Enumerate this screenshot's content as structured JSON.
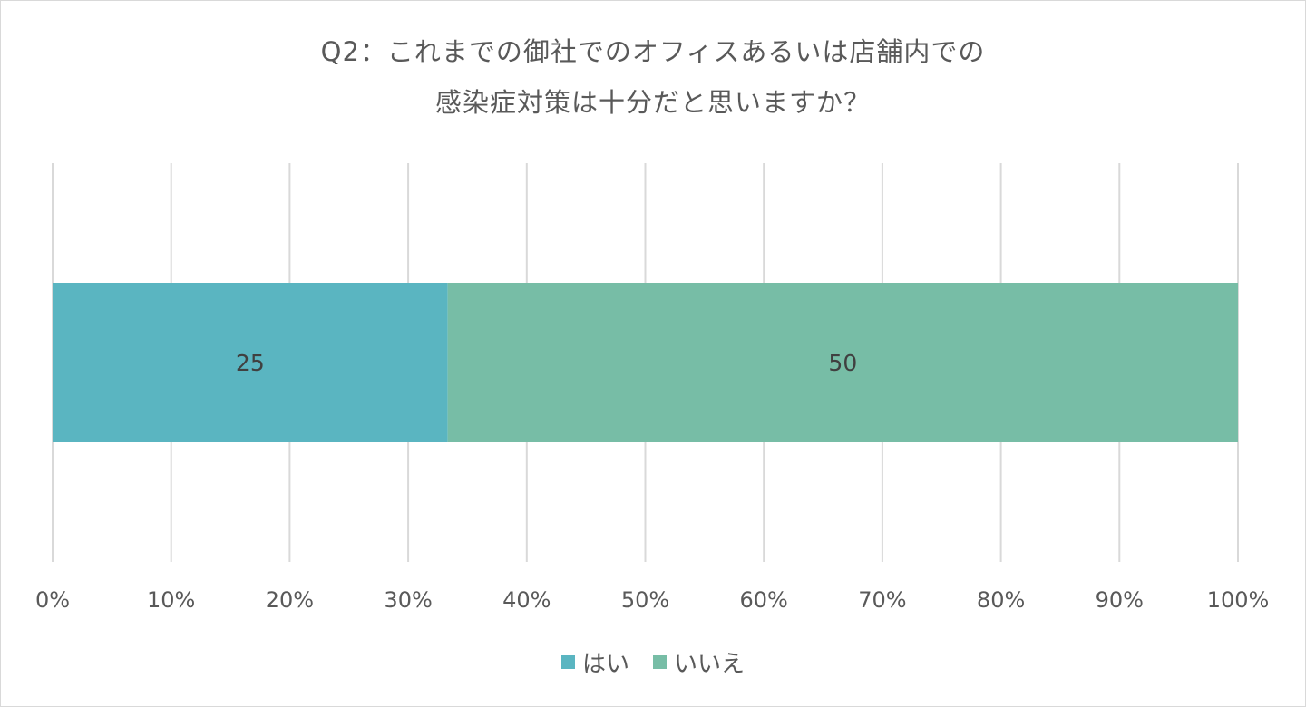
{
  "chart_data": {
    "type": "bar",
    "orientation": "horizontal",
    "stacked": "percent",
    "title": [
      "Q2：これまでの御社でのオフィスあるいは店舗内での",
      "感染症対策は十分だと思いますか？"
    ],
    "categories": [
      ""
    ],
    "series": [
      {
        "name": "はい",
        "values": [
          25
        ],
        "color": "#5ab5c1"
      },
      {
        "name": "いいえ",
        "values": [
          50
        ],
        "color": "#77bda6"
      }
    ],
    "x_ticks": [
      "0%",
      "10%",
      "20%",
      "30%",
      "40%",
      "50%",
      "60%",
      "70%",
      "80%",
      "90%",
      "100%"
    ],
    "xlim": [
      0,
      100
    ],
    "grid": true,
    "gridline_color": "#d9d9d9",
    "legend": "bottom",
    "data_labels": true
  }
}
